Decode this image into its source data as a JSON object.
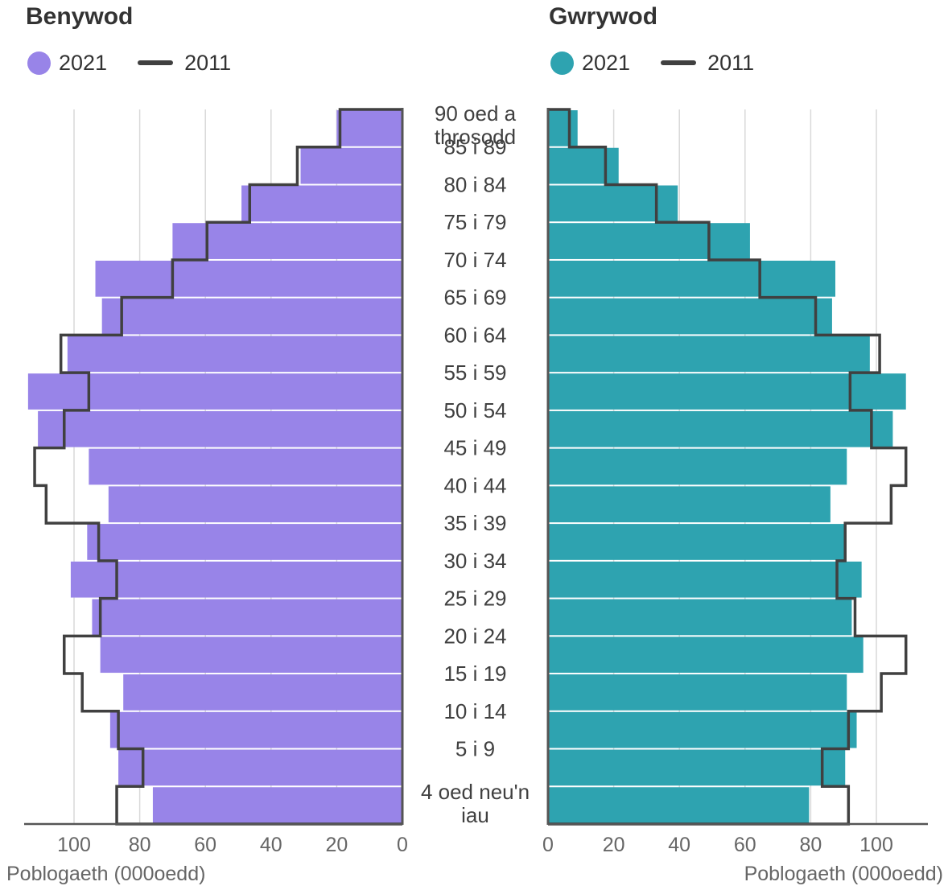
{
  "panels": {
    "left": {
      "title": "Benywod",
      "legend_2021": "2021",
      "legend_2011": "2011",
      "color_2021": "#9884e8"
    },
    "right": {
      "title": "Gwrywod",
      "legend_2021": "2021",
      "legend_2011": "2011",
      "color_2021": "#2ea3b0"
    },
    "line_color": "#404040"
  },
  "axis_title": "Poblogaeth (000oedd)",
  "chart_data": {
    "type": "bar",
    "subtype": "population-pyramid",
    "categories": [
      "90 oed a throsodd",
      "85 i 89",
      "80 i 84",
      "75 i 79",
      "70 i 74",
      "65 i 69",
      "60 i 64",
      "55 i 59",
      "50 i 54",
      "45 i 49",
      "40 i 44",
      "35 i 39",
      "30 i 34",
      "25 i 29",
      "20 i 24",
      "15 i 19",
      "10 i 14",
      "5 i 9",
      "4 oed neu'n iau"
    ],
    "category_lines": [
      [
        "90 oed a",
        "throsodd"
      ],
      [
        "85 i 89"
      ],
      [
        "80 i 84"
      ],
      [
        "75 i 79"
      ],
      [
        "70 i 74"
      ],
      [
        "65 i 69"
      ],
      [
        "60 i 64"
      ],
      [
        "55 i 59"
      ],
      [
        "50 i 54"
      ],
      [
        "45 i 49"
      ],
      [
        "40 i 44"
      ],
      [
        "35 i 39"
      ],
      [
        "30 i 34"
      ],
      [
        "25 i 29"
      ],
      [
        "20 i 24"
      ],
      [
        "15 i 19"
      ],
      [
        "10 i 14"
      ],
      [
        "5 i 9"
      ],
      [
        "4 oed neu'n",
        "iau"
      ]
    ],
    "xlim": [
      0,
      115
    ],
    "xticks": [
      0,
      20,
      40,
      60,
      80,
      100
    ],
    "xlabel": "Poblogaeth (000oedd)",
    "grid": true,
    "series": [
      {
        "panel": "Benywod",
        "name": "2021",
        "mark": "bar",
        "values": [
          20,
          31,
          49,
          70,
          93.5,
          91.5,
          102,
          114,
          111,
          95.5,
          89.5,
          96,
          101,
          94.5,
          92,
          85,
          89,
          86.5,
          76
        ]
      },
      {
        "panel": "Benywod",
        "name": "2011",
        "mark": "step-line",
        "values": [
          19,
          32,
          46.5,
          59.5,
          70,
          85.5,
          104,
          95.5,
          103,
          112,
          108.5,
          92.5,
          87,
          92,
          103,
          97.5,
          86.5,
          79,
          87
        ]
      },
      {
        "panel": "Gwrywod",
        "name": "2021",
        "mark": "bar",
        "values": [
          9,
          21.5,
          39.5,
          61.5,
          87.5,
          86.5,
          98,
          109,
          105,
          91,
          86,
          90.5,
          95.5,
          92.5,
          96,
          91,
          94,
          90.5,
          79.5
        ]
      },
      {
        "panel": "Gwrywod",
        "name": "2011",
        "mark": "step-line",
        "values": [
          6.5,
          17.5,
          33,
          49,
          64.5,
          81.5,
          101,
          92,
          98.5,
          109,
          104.5,
          90.5,
          88,
          93.5,
          109,
          101.5,
          91.5,
          83.5,
          91.5
        ]
      }
    ]
  }
}
